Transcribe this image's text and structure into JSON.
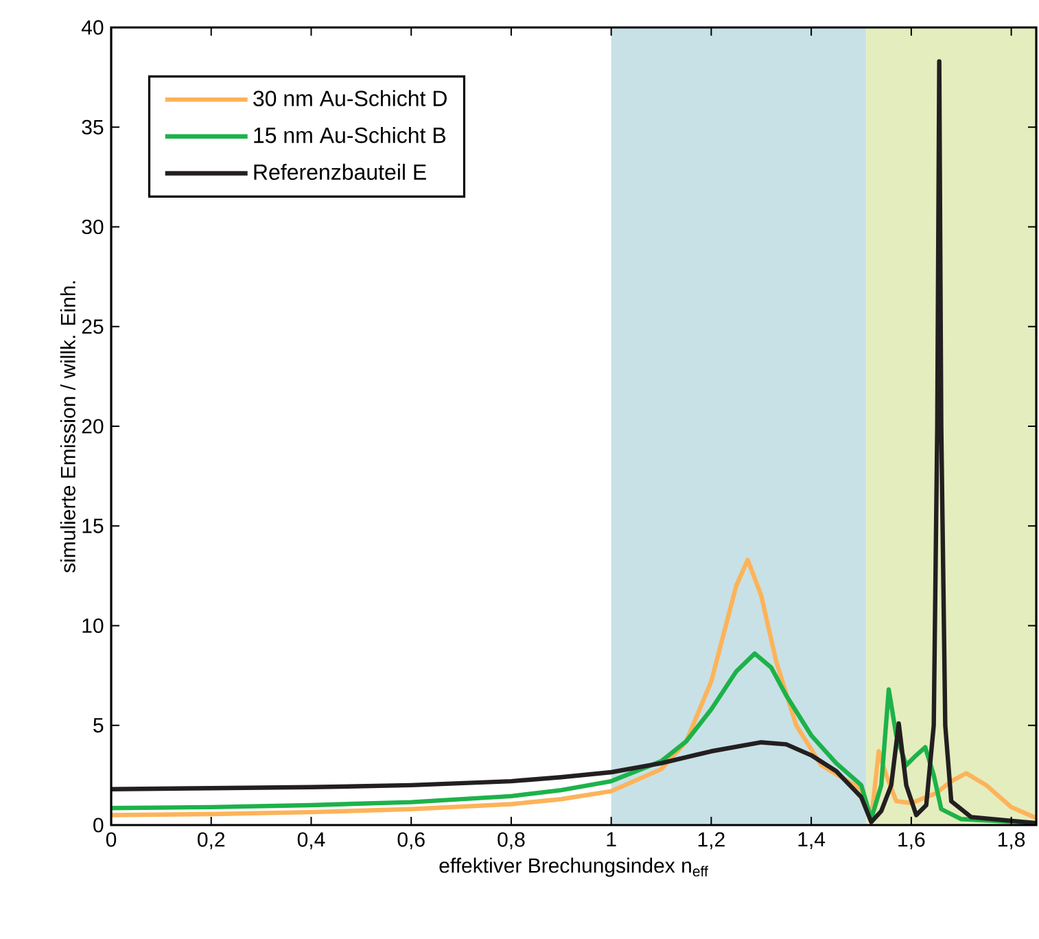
{
  "chart_data": {
    "type": "line",
    "xlabel": "effektiver Brechungsindex n$_{eff}$",
    "ylabel": "simulierte Emission / willk. Einh.",
    "xlim": [
      0,
      1.85
    ],
    "ylim": [
      0,
      40
    ],
    "xticks": [
      0,
      {
        "value": 0.2,
        "label": "0,2"
      },
      {
        "value": 0.4,
        "label": "0,4"
      },
      {
        "value": 0.6,
        "label": "0,6"
      },
      {
        "value": 0.8,
        "label": "0,8"
      },
      1,
      {
        "value": 1.2,
        "label": "1,2"
      },
      {
        "value": 1.4,
        "label": "1,4"
      },
      {
        "value": 1.6,
        "label": "1,6"
      },
      {
        "value": 1.8,
        "label": "1,8"
      }
    ],
    "yticks": [
      0,
      5,
      10,
      15,
      20,
      25,
      30,
      35,
      40
    ],
    "grid": false,
    "legend": "top left",
    "marker": "none",
    "line_style": "solid",
    "bands": [
      {
        "axis": "x",
        "from": 1,
        "to": 1.51,
        "color": "#c8e1e6"
      },
      {
        "axis": "x",
        "from": 1.51,
        "to": 1.85,
        "color": "#e4edbe"
      }
    ],
    "series": [
      {
        "name": "30 nm Au-Schicht D",
        "color": "#fdb35a",
        "x": [
          0,
          0.2,
          0.4,
          0.6,
          0.8,
          0.9,
          1.0,
          1.1,
          1.15,
          1.2,
          1.25,
          1.273,
          1.3,
          1.33,
          1.37,
          1.42,
          1.5,
          1.52,
          1.535,
          1.55,
          1.57,
          1.6,
          1.65,
          1.68,
          1.71,
          1.75,
          1.8,
          1.85
        ],
        "values": [
          0.5,
          0.55,
          0.65,
          0.8,
          1.05,
          1.3,
          1.7,
          2.8,
          4.2,
          7.2,
          12.0,
          13.3,
          11.5,
          8.2,
          5.0,
          3.0,
          1.8,
          0.3,
          3.7,
          2.5,
          1.2,
          1.1,
          1.6,
          2.2,
          2.6,
          2.0,
          0.9,
          0.35
        ]
      },
      {
        "name": "15 nm Au-Schicht B",
        "color": "#1db24a",
        "x": [
          0,
          0.2,
          0.4,
          0.6,
          0.8,
          0.9,
          1.0,
          1.1,
          1.15,
          1.2,
          1.25,
          1.287,
          1.32,
          1.35,
          1.4,
          1.45,
          1.5,
          1.52,
          1.54,
          1.555,
          1.57,
          1.59,
          1.61,
          1.628,
          1.645,
          1.66,
          1.7,
          1.85
        ],
        "values": [
          0.85,
          0.9,
          1.0,
          1.15,
          1.45,
          1.75,
          2.2,
          3.2,
          4.2,
          5.8,
          7.7,
          8.6,
          7.9,
          6.5,
          4.5,
          3.1,
          2.0,
          0.3,
          2.0,
          6.8,
          4.5,
          3.0,
          3.5,
          3.9,
          2.5,
          0.8,
          0.3,
          0.1
        ]
      },
      {
        "name": "Referenzbauteil E",
        "color": "#231f20",
        "x": [
          0,
          0.2,
          0.4,
          0.6,
          0.8,
          0.9,
          1.0,
          1.1,
          1.2,
          1.3,
          1.35,
          1.4,
          1.45,
          1.5,
          1.52,
          1.54,
          1.56,
          1.575,
          1.59,
          1.61,
          1.63,
          1.645,
          1.652,
          1.656,
          1.66,
          1.668,
          1.68,
          1.72,
          1.85
        ],
        "values": [
          1.8,
          1.85,
          1.9,
          2.0,
          2.2,
          2.4,
          2.65,
          3.1,
          3.7,
          4.15,
          4.05,
          3.5,
          2.7,
          1.4,
          0.15,
          0.7,
          2.0,
          5.1,
          2.0,
          0.5,
          1.0,
          5.0,
          20.0,
          38.3,
          20.0,
          5.0,
          1.2,
          0.4,
          0.1
        ]
      }
    ]
  }
}
